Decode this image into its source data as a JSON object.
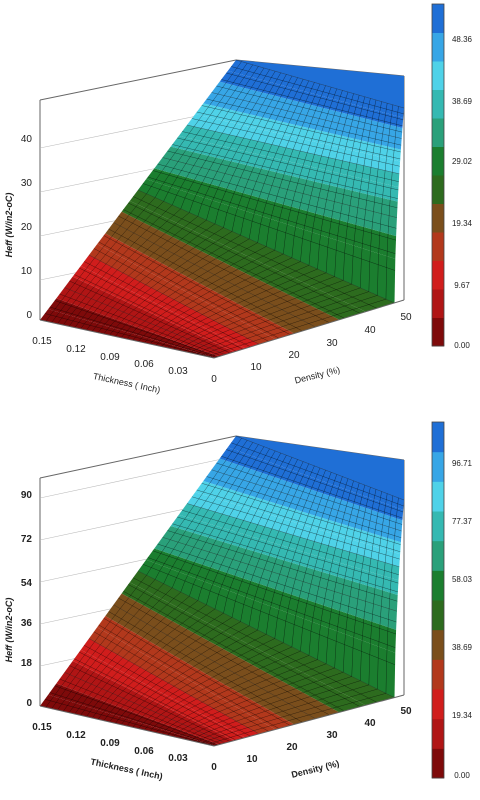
{
  "chart_data": [
    {
      "type": "surface3d",
      "title": "",
      "xlabel": "Thickness ( Inch)",
      "ylabel": "Density (%)",
      "zlabel": "Heff  (W/in2-oC)",
      "x_ticks": [
        "0.15",
        "0.12",
        "0.09",
        "0.06",
        "0.03",
        "0"
      ],
      "y_ticks": [
        "10",
        "20",
        "30",
        "40",
        "50"
      ],
      "z_ticks": [
        "0",
        "10",
        "20",
        "30",
        "40"
      ],
      "zlim": [
        0,
        48
      ],
      "colorbar": {
        "labels": [
          "48.36",
          "38.69",
          "29.02",
          "19.34",
          "9.67",
          "0.00"
        ],
        "colors": [
          "#1f6fd6",
          "#37a6e6",
          "#4fd2e8",
          "#35b9b2",
          "#2aa07a",
          "#1b7e2f",
          "#2d6b1e",
          "#7a4e1c",
          "#b2381c",
          "#d01d1c",
          "#b01515",
          "#7e0a0a"
        ]
      }
    },
    {
      "type": "surface3d",
      "title": "",
      "xlabel": "Thickness ( Inch)",
      "ylabel": "Density (%)",
      "zlabel": "Heff  (W/in2-oC)",
      "x_ticks": [
        "0.15",
        "0.12",
        "0.09",
        "0.06",
        "0.03",
        "0"
      ],
      "y_ticks": [
        "10",
        "20",
        "30",
        "40",
        "50"
      ],
      "z_ticks": [
        "0",
        "18",
        "36",
        "54",
        "72",
        "90"
      ],
      "zlim": [
        0,
        105
      ],
      "colorbar": {
        "labels": [
          "96.71",
          "77.37",
          "58.03",
          "38.69",
          "19.34",
          "0.00"
        ],
        "colors": [
          "#1f6fd6",
          "#37a6e6",
          "#4fd2e8",
          "#35b9b2",
          "#2aa07a",
          "#1b7e2f",
          "#2d6b1e",
          "#7a4e1c",
          "#b2381c",
          "#d01d1c",
          "#b01515",
          "#7e0a0a"
        ]
      }
    }
  ]
}
